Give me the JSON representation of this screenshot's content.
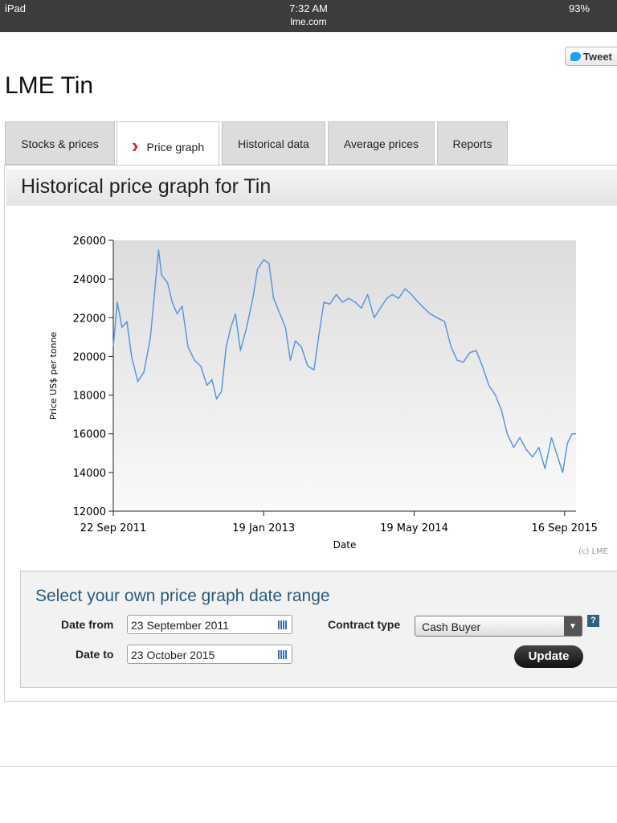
{
  "status_bar": {
    "device": "iPad",
    "time": "7:32 AM",
    "url": "lme.com",
    "battery": "93%"
  },
  "tweet": "Tweet",
  "heading": "LME Tin",
  "tabs": [
    "Stocks & prices",
    "Price graph",
    "Historical data",
    "Average prices",
    "Reports"
  ],
  "panel_title": "Historical price graph for Tin",
  "chart_data": {
    "type": "line",
    "xlabel": "Date",
    "ylabel": "Price US$ per tonne",
    "credit": "(c) LME",
    "color": "#5a96e0",
    "xlim": [
      "2011-09-22",
      "2015-10-23"
    ],
    "xticks": [
      {
        "value": "2011-09-22",
        "label": "22 Sep 2011"
      },
      {
        "value": "2013-01-19",
        "label": "19 Jan 2013"
      },
      {
        "value": "2014-05-19",
        "label": "19 May 2014"
      },
      {
        "value": "2015-09-16",
        "label": "16 Sep 2015"
      }
    ],
    "ylim": [
      12000,
      26000
    ],
    "yticks": [
      12000,
      14000,
      16000,
      18000,
      20000,
      22000,
      24000,
      26000
    ],
    "x": [
      "2011-09-22",
      "2011-10-05",
      "2011-10-20",
      "2011-11-05",
      "2011-11-20",
      "2011-12-10",
      "2011-12-30",
      "2012-01-20",
      "2012-02-05",
      "2012-02-15",
      "2012-02-25",
      "2012-03-15",
      "2012-03-30",
      "2012-04-15",
      "2012-05-01",
      "2012-05-20",
      "2012-06-10",
      "2012-06-30",
      "2012-07-20",
      "2012-08-05",
      "2012-08-20",
      "2012-09-05",
      "2012-09-20",
      "2012-10-05",
      "2012-10-20",
      "2012-11-05",
      "2012-11-25",
      "2012-12-15",
      "2012-12-30",
      "2013-01-19",
      "2013-02-05",
      "2013-02-20",
      "2013-03-10",
      "2013-03-30",
      "2013-04-15",
      "2013-05-01",
      "2013-05-20",
      "2013-06-10",
      "2013-06-30",
      "2013-07-15",
      "2013-08-01",
      "2013-08-20",
      "2013-09-10",
      "2013-09-30",
      "2013-10-20",
      "2013-11-10",
      "2013-11-30",
      "2013-12-20",
      "2014-01-10",
      "2014-01-30",
      "2014-02-20",
      "2014-03-10",
      "2014-03-30",
      "2014-04-20",
      "2014-05-10",
      "2014-06-01",
      "2014-06-20",
      "2014-07-10",
      "2014-08-01",
      "2014-08-25",
      "2014-09-15",
      "2014-10-05",
      "2014-10-25",
      "2014-11-15",
      "2014-12-05",
      "2014-12-25",
      "2015-01-15",
      "2015-02-05",
      "2015-02-25",
      "2015-03-15",
      "2015-04-05",
      "2015-04-25",
      "2015-05-15",
      "2015-06-05",
      "2015-06-25",
      "2015-07-15",
      "2015-08-05",
      "2015-08-25",
      "2015-09-10",
      "2015-09-25",
      "2015-10-10",
      "2015-10-23"
    ],
    "values": [
      20500,
      22800,
      21500,
      21800,
      20000,
      18700,
      19200,
      21000,
      23800,
      25500,
      24200,
      23800,
      22800,
      22200,
      22600,
      20500,
      19800,
      19500,
      18500,
      18800,
      17800,
      18200,
      20500,
      21500,
      22200,
      20300,
      21500,
      23000,
      24500,
      25000,
      24800,
      23000,
      22300,
      21500,
      19800,
      20800,
      20500,
      19500,
      19300,
      21000,
      22800,
      22700,
      23200,
      22800,
      23000,
      22800,
      22500,
      23200,
      22000,
      22500,
      23000,
      23200,
      23000,
      23500,
      23200,
      22800,
      22500,
      22200,
      22000,
      21800,
      20500,
      19800,
      19700,
      20200,
      20300,
      19500,
      18500,
      18000,
      17200,
      16000,
      15300,
      15800,
      15200,
      14800,
      15300,
      14200,
      15800,
      14800,
      14000,
      15500,
      16000,
      16000
    ]
  },
  "form": {
    "title": "Select your own price graph date range",
    "date_from_label": "Date from",
    "date_from": "23 September 2011",
    "date_to_label": "Date to",
    "date_to": "23 October 2015",
    "contract_type_label": "Contract type",
    "contract_type": "Cash Buyer",
    "help": "?",
    "button": "Update"
  }
}
